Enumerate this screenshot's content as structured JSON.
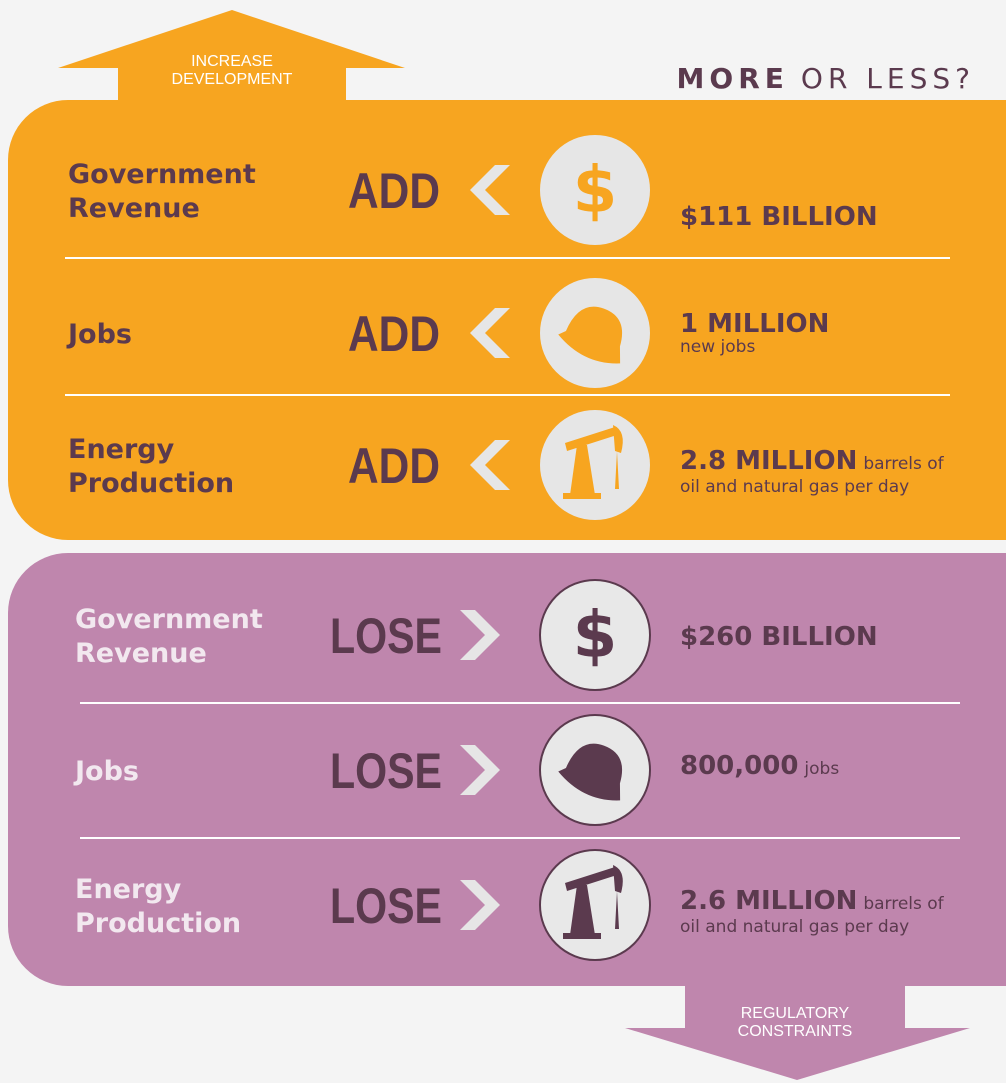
{
  "header": {
    "arrow_label": [
      "INCREASE",
      "DEVELOPMENT"
    ],
    "title_bold": "MORE",
    "title_rest": "OR LESS?"
  },
  "increase": {
    "rows": [
      {
        "label": [
          "Government",
          "Revenue"
        ],
        "verb": "ADD",
        "value": "$111 BILLION",
        "note": []
      },
      {
        "label": [
          "Jobs"
        ],
        "verb": "ADD",
        "value": "1 MILLION",
        "note": [
          "new jobs"
        ]
      },
      {
        "label": [
          "Energy",
          "Production"
        ],
        "verb": "ADD",
        "value": "2.8 MILLION",
        "note": [
          "barrels of",
          "oil and natural gas per day"
        ]
      }
    ]
  },
  "decrease": {
    "rows": [
      {
        "label": [
          "Government",
          "Revenue"
        ],
        "verb": "LOSE",
        "value": "$260 BILLION",
        "note": []
      },
      {
        "label": [
          "Jobs"
        ],
        "verb": "LOSE",
        "value": "800,000",
        "note": [
          "jobs"
        ]
      },
      {
        "label": [
          "Energy",
          "Production"
        ],
        "verb": "LOSE",
        "value": "2.6 MILLION",
        "note": [
          "barrels of",
          "oil and natural gas per day"
        ]
      }
    ]
  },
  "footer": {
    "arrow_label": [
      "REGULATORY",
      "CONSTRAINTS"
    ]
  }
}
